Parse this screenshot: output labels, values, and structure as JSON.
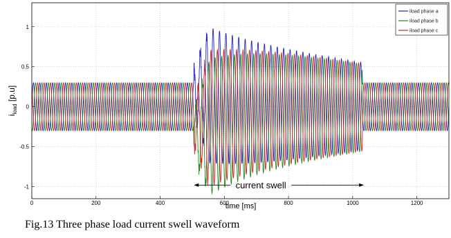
{
  "chart_data": {
    "type": "line",
    "xlabel": "time [ms]",
    "ylabel_main": "i",
    "ylabel_sub": "load",
    "ylabel_unit": " [p.u]",
    "xlim": [
      0,
      1300
    ],
    "ylim": [
      -1.15,
      1.3
    ],
    "x_ticks": [
      0,
      200,
      400,
      600,
      800,
      1000,
      1200
    ],
    "y_ticks": [
      -1,
      -0.5,
      0,
      0.5,
      1
    ],
    "y_tick_labels": [
      "-1",
      "-0.5",
      "0",
      "0.5",
      "1"
    ],
    "grid": true,
    "legend_position": "top-right",
    "frequency_hz": 50,
    "swell_interval_ms": [
      505,
      1030
    ],
    "series": [
      {
        "name": "iload phase a",
        "color": "#1f1fbf",
        "phase_deg": 0
      },
      {
        "name": "iload phase b",
        "color": "#1a8a1a",
        "phase_deg": -120
      },
      {
        "name": "iload phase c",
        "color": "#d42020",
        "phase_deg": 120
      }
    ],
    "amplitude_envelope": {
      "pre_swell_amplitude": 0.3,
      "post_swell_amplitude": 0.3,
      "swell_peak_amplitude": 0.85,
      "swell_start_ms": 505,
      "swell_peak_ms": 555,
      "swell_end_ms": 1030
    },
    "dc_offset_decay": {
      "phase_a_offset": 0.2,
      "phase_b_offset": -0.35,
      "phase_c_offset": -0.2,
      "decay_time_constant_ms": 150
    },
    "annotation": {
      "text": "current swell",
      "x_start": 505,
      "x_end": 1035,
      "y": -0.98
    },
    "caption": "Fig.13 Three phase load current swell waveform"
  }
}
